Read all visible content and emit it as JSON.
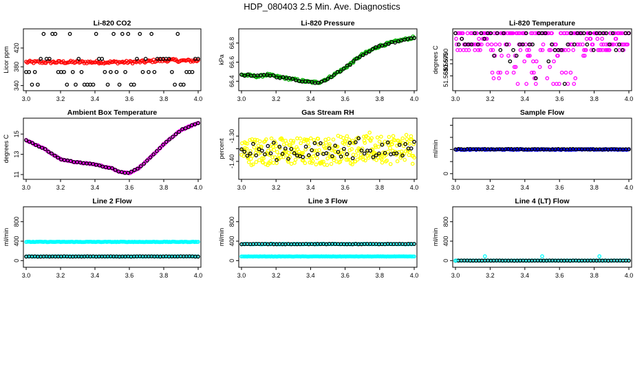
{
  "figure": {
    "title": "HDP_080403  2.5 Min. Ave. Diagnostics"
  },
  "colors": {
    "black": "#000000",
    "red": "#ff0000",
    "green": "#00b000",
    "magenta": "#ff00ff",
    "yellow": "#ffff00",
    "blue": "#0000ff",
    "cyan": "#00ffff"
  },
  "chart_data": [
    {
      "type": "scatter",
      "title": "Li-820 CO2",
      "ylabel": "Licor ppm",
      "xlim": [
        3.0,
        4.0
      ],
      "ylim": [
        335,
        455
      ],
      "xticks": [
        3.0,
        3.2,
        3.4,
        3.6,
        3.8,
        4.0
      ],
      "xtick_labels": [
        "3.0",
        "3.2",
        "3.4",
        "3.6",
        "3.8",
        "4.0"
      ],
      "yticks": [
        340,
        380,
        420
      ],
      "ytick_labels": [
        "340",
        "380",
        "420"
      ],
      "series": [
        {
          "name": "fill",
          "color": "red",
          "pattern": "band",
          "x": [
            3.0,
            3.2,
            3.4,
            3.6,
            3.7,
            3.75,
            3.85,
            3.9,
            4.0
          ],
          "y": [
            390,
            390,
            390,
            390,
            391,
            393,
            394,
            393,
            393
          ],
          "spread": 3,
          "n": 140
        },
        {
          "name": "points",
          "color": "black",
          "pattern": "levels",
          "levels": [
            342,
            369,
            397,
            450
          ],
          "n": 60
        }
      ]
    },
    {
      "type": "scatter",
      "title": "Li-820 Pressure",
      "ylabel": "kPa",
      "xlim": [
        3.0,
        4.0
      ],
      "ylim": [
        66.33,
        66.92
      ],
      "xticks": [
        3.0,
        3.2,
        3.4,
        3.6,
        3.8,
        4.0
      ],
      "xtick_labels": [
        "3.0",
        "3.2",
        "3.4",
        "3.6",
        "3.8",
        "4.0"
      ],
      "yticks": [
        66.4,
        66.6,
        66.8
      ],
      "ytick_labels": [
        "66.4",
        "66.6",
        "66.8"
      ],
      "series": [
        {
          "name": "fill",
          "color": "green",
          "pattern": "band",
          "x": [
            3.0,
            3.1,
            3.15,
            3.2,
            3.3,
            3.4,
            3.45,
            3.5,
            3.6,
            3.7,
            3.8,
            3.9,
            4.0
          ],
          "y": [
            66.47,
            66.45,
            66.47,
            66.45,
            66.42,
            66.39,
            66.39,
            66.43,
            66.54,
            66.68,
            66.77,
            66.82,
            66.86
          ],
          "spread": 0.012,
          "n": 140
        },
        {
          "name": "points",
          "color": "black",
          "pattern": "band",
          "x": [
            3.0,
            3.1,
            3.15,
            3.2,
            3.3,
            3.4,
            3.45,
            3.5,
            3.6,
            3.7,
            3.8,
            3.9,
            4.0
          ],
          "y": [
            66.47,
            66.45,
            66.47,
            66.45,
            66.42,
            66.39,
            66.39,
            66.43,
            66.54,
            66.68,
            66.77,
            66.82,
            66.86
          ],
          "spread": 0.01,
          "n": 55
        }
      ]
    },
    {
      "type": "scatter",
      "title": "Li-820 Temperature",
      "ylabel": "degrees C",
      "xlim": [
        3.0,
        4.0
      ],
      "ylim": [
        51.5665,
        51.5735
      ],
      "xticks": [
        3.0,
        3.2,
        3.4,
        3.6,
        3.8,
        4.0
      ],
      "xtick_labels": [
        "3.0",
        "3.2",
        "3.4",
        "3.6",
        "3.8",
        "4.0"
      ],
      "yticks": [
        51.568,
        51.5695,
        51.57
      ],
      "ytick_labels": [
        "51.5680",
        "51.5695",
        "51.5700"
      ],
      "series": [
        {
          "name": "magenta",
          "color": "magenta",
          "pattern": "temp",
          "n": 260
        },
        {
          "name": "black",
          "color": "black",
          "pattern": "temp",
          "n": 55
        }
      ]
    },
    {
      "type": "scatter",
      "title": "Ambient Box Temperature",
      "ylabel": "degrees C",
      "xlim": [
        3.0,
        4.0
      ],
      "ylim": [
        10.8,
        16.3
      ],
      "xticks": [
        3.0,
        3.2,
        3.4,
        3.6,
        3.8,
        4.0
      ],
      "xtick_labels": [
        "3.0",
        "3.2",
        "3.4",
        "3.6",
        "3.8",
        "4.0"
      ],
      "yticks": [
        11,
        13,
        15
      ],
      "ytick_labels": [
        "11",
        "13",
        "15"
      ],
      "series": [
        {
          "name": "fill",
          "color": "magenta",
          "pattern": "band",
          "x": [
            3.0,
            3.05,
            3.1,
            3.2,
            3.3,
            3.4,
            3.5,
            3.55,
            3.6,
            3.65,
            3.7,
            3.8,
            3.9,
            4.0
          ],
          "y": [
            14.4,
            14.0,
            13.6,
            12.5,
            12.2,
            12.0,
            11.6,
            11.25,
            11.15,
            11.6,
            12.3,
            14.0,
            15.4,
            16.1
          ],
          "spread": 0.05,
          "n": 150
        },
        {
          "name": "points",
          "color": "black",
          "pattern": "band",
          "x": [
            3.0,
            3.05,
            3.1,
            3.2,
            3.3,
            3.4,
            3.5,
            3.55,
            3.6,
            3.65,
            3.7,
            3.8,
            3.9,
            4.0
          ],
          "y": [
            14.4,
            14.0,
            13.6,
            12.5,
            12.2,
            12.0,
            11.6,
            11.25,
            11.15,
            11.6,
            12.3,
            14.0,
            15.4,
            16.1
          ],
          "spread": 0.04,
          "n": 55
        }
      ]
    },
    {
      "type": "scatter",
      "title": "Gas Stream RH",
      "ylabel": "percent",
      "xlim": [
        3.0,
        4.0
      ],
      "ylim": [
        -1.46,
        -1.24
      ],
      "xticks": [
        3.0,
        3.2,
        3.4,
        3.6,
        3.8,
        4.0
      ],
      "xtick_labels": [
        "3.0",
        "3.2",
        "3.4",
        "3.6",
        "3.8",
        "4.0"
      ],
      "yticks": [
        -1.4,
        -1.35,
        -1.3
      ],
      "ytick_labels": [
        "-1.40",
        "",
        "-1.30"
      ],
      "series": [
        {
          "name": "fill",
          "color": "yellow",
          "pattern": "noise",
          "center": -1.36,
          "amp": 0.055,
          "n": 330
        },
        {
          "name": "points",
          "color": "black",
          "pattern": "noise",
          "center": -1.36,
          "amp": 0.035,
          "n": 60
        }
      ]
    },
    {
      "type": "scatter",
      "title": "Sample Flow",
      "ylabel": "ml/min",
      "xlim": [
        3.0,
        4.0
      ],
      "ylim": [
        -60,
        1090
      ],
      "xticks": [
        3.0,
        3.2,
        3.4,
        3.6,
        3.8,
        4.0
      ],
      "xtick_labels": [
        "3.0",
        "3.2",
        "3.4",
        "3.6",
        "3.8",
        "4.0"
      ],
      "yticks": [
        0,
        250,
        500,
        750,
        1000
      ],
      "ytick_labels": [
        "0",
        "",
        "",
        "",
        ""
      ],
      "series": [
        {
          "name": "fill",
          "color": "blue",
          "pattern": "flat",
          "y": 500,
          "spread": 8,
          "n": 160
        },
        {
          "name": "points",
          "color": "black",
          "pattern": "flat",
          "y": 505,
          "spread": 6,
          "n": 60
        }
      ]
    },
    {
      "type": "scatter",
      "title": "Line 2 Flow",
      "ylabel": "ml/min",
      "xlim": [
        3.0,
        4.0
      ],
      "ylim": [
        -80,
        1050
      ],
      "xticks": [
        3.0,
        3.2,
        3.4,
        3.6,
        3.8,
        4.0
      ],
      "xtick_labels": [
        "3.0",
        "3.2",
        "3.4",
        "3.6",
        "3.8",
        "4.0"
      ],
      "yticks": [
        0,
        400,
        800
      ],
      "ytick_labels": [
        "0",
        "400",
        "800"
      ],
      "series": [
        {
          "name": "upper",
          "color": "cyan",
          "pattern": "flat",
          "y": 385,
          "spread": 5,
          "n": 150
        },
        {
          "name": "lower",
          "color": "cyan",
          "pattern": "flat",
          "y": 85,
          "spread": 3,
          "n": 130
        },
        {
          "name": "points",
          "color": "black",
          "pattern": "flat",
          "y": 85,
          "spread": 3,
          "n": 60
        }
      ]
    },
    {
      "type": "scatter",
      "title": "Line 3 Flow",
      "ylabel": "ml/min",
      "xlim": [
        3.0,
        4.0
      ],
      "ylim": [
        -80,
        1050
      ],
      "xticks": [
        3.0,
        3.2,
        3.4,
        3.6,
        3.8,
        4.0
      ],
      "xtick_labels": [
        "3.0",
        "3.2",
        "3.4",
        "3.6",
        "3.8",
        "4.0"
      ],
      "yticks": [
        0,
        400,
        800
      ],
      "ytick_labels": [
        "0",
        "400",
        "800"
      ],
      "series": [
        {
          "name": "upper",
          "color": "cyan",
          "pattern": "flat",
          "y": 340,
          "spread": 5,
          "n": 120
        },
        {
          "name": "points",
          "color": "black",
          "pattern": "flat",
          "y": 340,
          "spread": 4,
          "n": 60
        },
        {
          "name": "lower",
          "color": "cyan",
          "pattern": "flat",
          "y": 85,
          "spread": 3,
          "n": 150
        }
      ]
    },
    {
      "type": "scatter",
      "title": "Line 4 (LT) Flow",
      "ylabel": "ml/min",
      "xlim": [
        3.0,
        4.0
      ],
      "ylim": [
        -80,
        1050
      ],
      "xticks": [
        3.0,
        3.2,
        3.4,
        3.6,
        3.8,
        4.0
      ],
      "xtick_labels": [
        "3.0",
        "3.2",
        "3.4",
        "3.6",
        "3.8",
        "4.0"
      ],
      "yticks": [
        0,
        400,
        800
      ],
      "ytick_labels": [
        "0",
        "400",
        "800"
      ],
      "series": [
        {
          "name": "base",
          "color": "cyan",
          "pattern": "flat",
          "y": 0,
          "spread": 2,
          "n": 120
        },
        {
          "name": "points",
          "color": "black",
          "pattern": "flat",
          "y": 0,
          "spread": 2,
          "n": 60
        },
        {
          "name": "spikes",
          "color": "cyan",
          "pattern": "explicit",
          "x": [
            3.0,
            3.17,
            3.5,
            3.83
          ],
          "y": [
            0,
            90,
            90,
            90
          ]
        }
      ]
    }
  ]
}
